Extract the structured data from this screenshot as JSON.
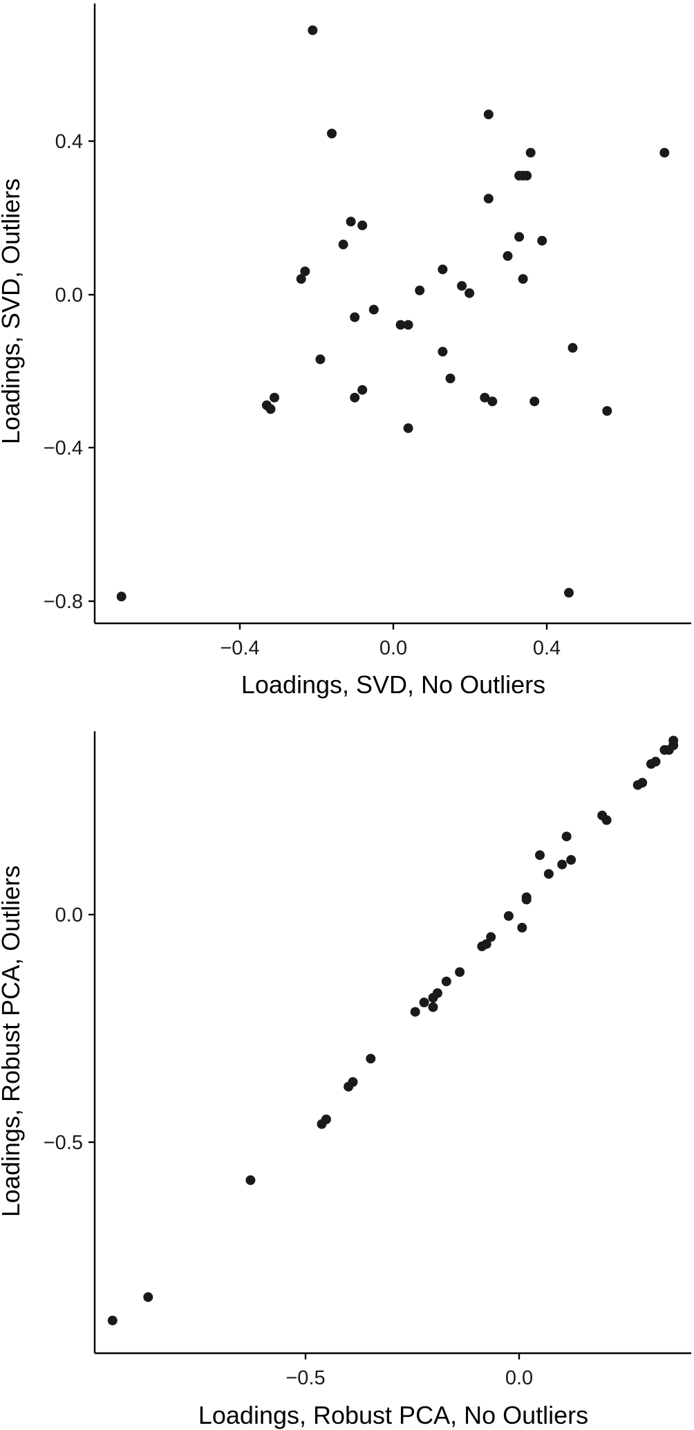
{
  "chart_data": [
    {
      "type": "scatter",
      "title": "",
      "xlabel": "Loadings, SVD, No Outliers",
      "ylabel": "Loadings, SVD, Outliers",
      "xlim": [
        -0.78,
        0.78
      ],
      "ylim": [
        -0.86,
        0.76
      ],
      "xticks": [
        -0.4,
        0.0,
        0.4
      ],
      "yticks": [
        -0.8,
        -0.4,
        0.0,
        0.4
      ],
      "xtick_labels": [
        "−0.4",
        "0.0",
        "0.4"
      ],
      "ytick_labels": [
        "−0.8",
        "−0.4",
        "0.0",
        "0.4"
      ],
      "grid": false,
      "marker_color": "#1a1a1a",
      "series": [
        {
          "x": [
            -0.71,
            -0.21,
            0.25,
            -0.16,
            0.36,
            0.71,
            0.33,
            0.34,
            0.35,
            0.25,
            -0.11,
            -0.08,
            -0.13,
            0.33,
            0.39,
            0.3,
            -0.23,
            -0.24,
            0.13,
            0.34,
            0.18,
            0.07,
            0.2,
            -0.05,
            -0.1,
            0.02,
            0.04,
            0.13,
            0.47,
            -0.19,
            0.15,
            -0.08,
            -0.1,
            0.24,
            -0.31,
            0.26,
            0.37,
            -0.33,
            -0.32,
            0.56,
            0.04,
            0.46
          ],
          "y": [
            -0.79,
            0.69,
            0.47,
            0.42,
            0.37,
            0.37,
            0.31,
            0.31,
            0.31,
            0.25,
            0.19,
            0.18,
            0.13,
            0.15,
            0.14,
            0.1,
            0.06,
            0.04,
            0.065,
            0.04,
            0.022,
            0.01,
            0.003,
            -0.04,
            -0.06,
            -0.08,
            -0.08,
            -0.15,
            -0.14,
            -0.17,
            -0.22,
            -0.25,
            -0.27,
            -0.27,
            -0.27,
            -0.28,
            -0.28,
            -0.29,
            -0.3,
            -0.305,
            -0.35,
            -0.78
          ]
        }
      ]
    },
    {
      "type": "scatter",
      "title": "",
      "xlabel": "Loadings, Robust PCA, No Outliers",
      "ylabel": "Loadings, Robust PCA, Outliers",
      "xlim": [
        -0.97,
        0.37
      ],
      "ylim": [
        -0.97,
        0.36
      ],
      "xticks": [
        -0.5,
        0.0
      ],
      "yticks": [
        -0.5,
        0.0
      ],
      "xtick_labels": [
        "−0.5",
        "0.0"
      ],
      "ytick_labels": [
        "−0.5",
        "0.0"
      ],
      "grid": false,
      "marker_color": "#1a1a1a",
      "series": [
        {
          "x": [
            -0.93,
            -0.85,
            -0.62,
            -0.46,
            -0.45,
            -0.4,
            -0.39,
            -0.35,
            -0.25,
            -0.23,
            -0.21,
            -0.21,
            -0.2,
            -0.18,
            -0.15,
            -0.1,
            -0.09,
            -0.08,
            -0.04,
            -0.01,
            0.0,
            0.0,
            0.03,
            0.05,
            0.08,
            0.09,
            0.1,
            0.17,
            0.18,
            0.25,
            0.26,
            0.28,
            0.29,
            0.31,
            0.32,
            0.33,
            0.33
          ],
          "y": [
            -0.9,
            -0.85,
            -0.6,
            -0.48,
            -0.47,
            -0.4,
            -0.39,
            -0.34,
            -0.24,
            -0.22,
            -0.23,
            -0.21,
            -0.2,
            -0.175,
            -0.155,
            -0.1,
            -0.095,
            -0.08,
            -0.035,
            -0.06,
            0.0,
            0.005,
            0.095,
            0.055,
            0.075,
            0.135,
            0.085,
            0.18,
            0.17,
            0.245,
            0.25,
            0.29,
            0.295,
            0.32,
            0.32,
            0.33,
            0.34
          ]
        }
      ]
    }
  ]
}
